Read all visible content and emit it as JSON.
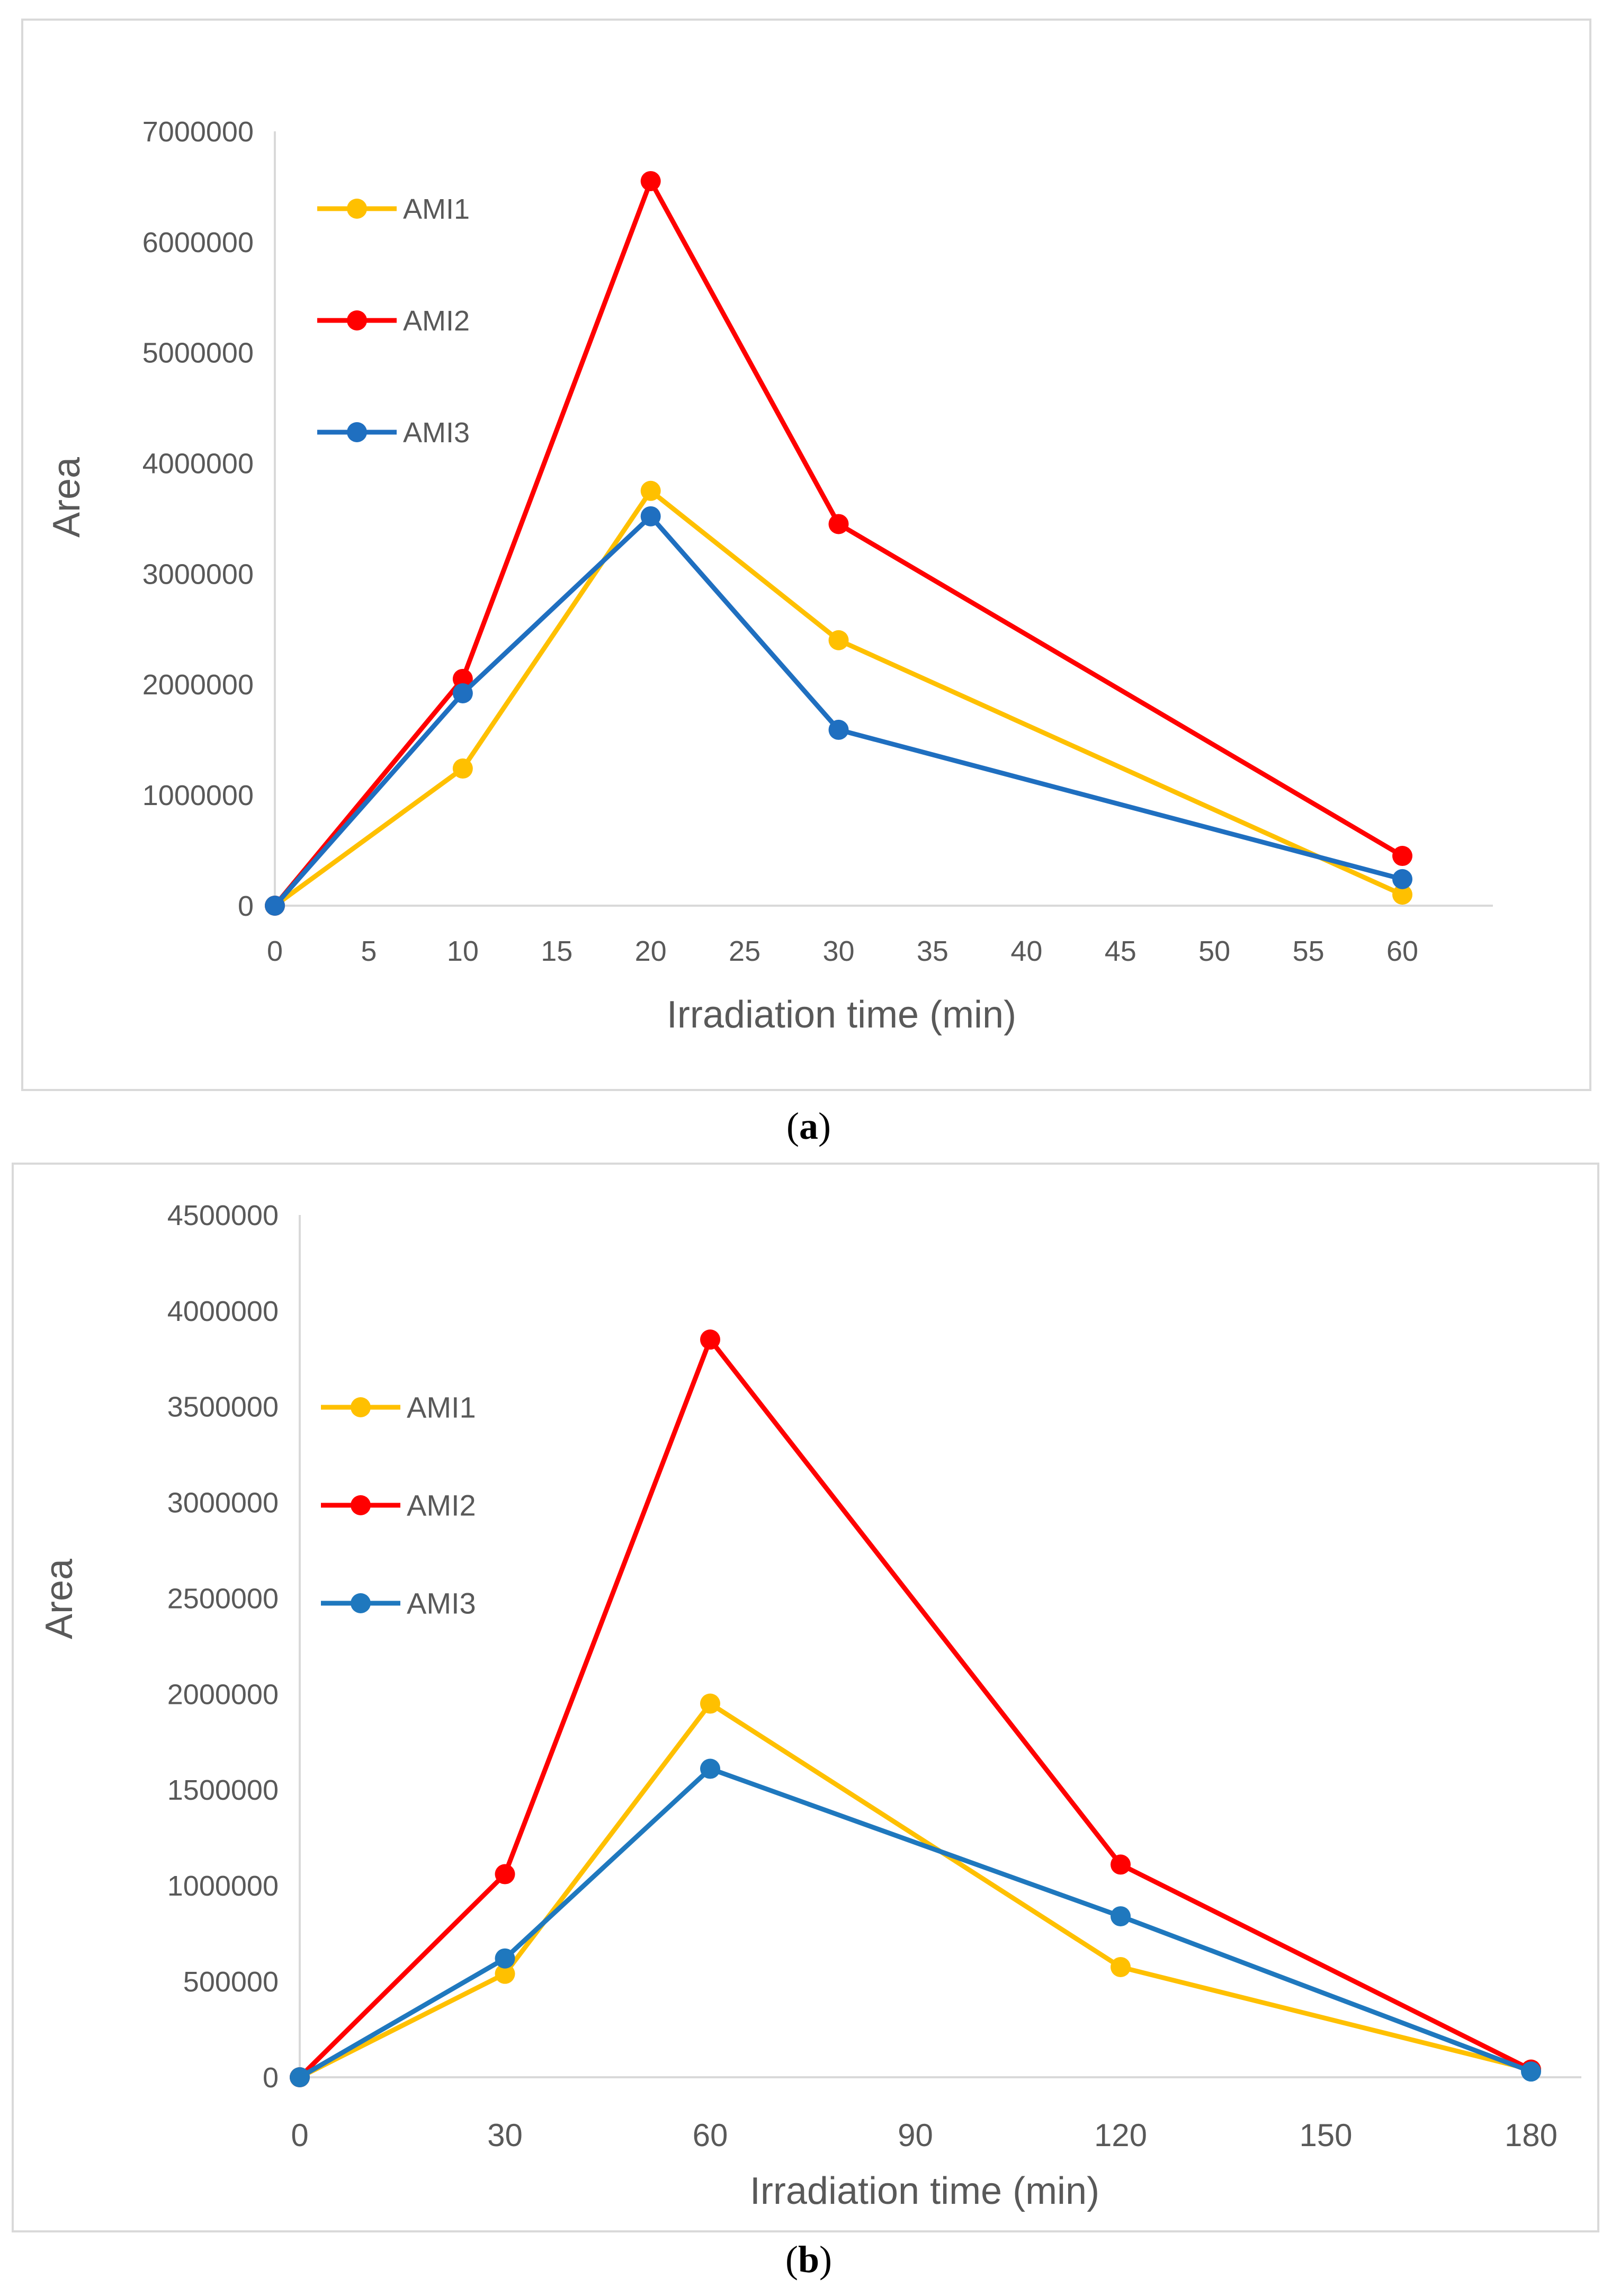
{
  "chart_data": [
    {
      "type": "line",
      "xlabel": "Irradiation time (min)",
      "ylabel": "Area",
      "x_axis_type": "numeric",
      "xlim": [
        0,
        62
      ],
      "xticks": [
        0,
        5,
        10,
        15,
        20,
        25,
        30,
        35,
        40,
        45,
        50,
        55,
        60
      ],
      "ylim": [
        0,
        7000000
      ],
      "yticks": [
        0,
        1000000,
        2000000,
        3000000,
        4000000,
        5000000,
        6000000,
        7000000
      ],
      "grid": false,
      "legend_position": "top-left",
      "series": [
        {
          "name": "AMI1",
          "color": "#FFC000",
          "x": [
            0,
            10,
            20,
            30,
            60
          ],
          "values": [
            0,
            1240000,
            3750000,
            2400000,
            100000
          ]
        },
        {
          "name": "AMI2",
          "color": "#FF0000",
          "x": [
            0,
            10,
            20,
            30,
            60
          ],
          "values": [
            0,
            2050000,
            6550000,
            3450000,
            450000
          ]
        },
        {
          "name": "AMI3",
          "color": "#1F6FC0",
          "x": [
            0,
            10,
            20,
            30,
            60
          ],
          "values": [
            0,
            1920000,
            3520000,
            1590000,
            240000
          ]
        }
      ],
      "caption_prefix": "(",
      "caption_letter": "a",
      "caption_suffix": ")"
    },
    {
      "type": "line",
      "xlabel": "Irradiation time (min)",
      "ylabel": "Area",
      "x_axis_type": "category",
      "categories": [
        "0",
        "30",
        "60",
        "90",
        "120",
        "150",
        "180"
      ],
      "ylim": [
        0,
        4500000
      ],
      "yticks": [
        0,
        500000,
        1000000,
        1500000,
        2000000,
        2500000,
        3000000,
        3500000,
        4000000,
        4500000
      ],
      "grid": false,
      "legend_position": "left",
      "series": [
        {
          "name": "AMI1",
          "color": "#FFC000",
          "x": [
            0,
            30,
            60,
            120,
            180
          ],
          "values": [
            0,
            540000,
            1950000,
            575000,
            40000
          ]
        },
        {
          "name": "AMI2",
          "color": "#FF0000",
          "x": [
            0,
            30,
            60,
            120,
            180
          ],
          "values": [
            0,
            1060000,
            3850000,
            1110000,
            40000
          ]
        },
        {
          "name": "AMI3",
          "color": "#1F78BE",
          "x": [
            0,
            30,
            60,
            120,
            180
          ],
          "values": [
            0,
            620000,
            1610000,
            840000,
            30000
          ]
        }
      ],
      "caption_prefix": "(",
      "caption_letter": "b",
      "caption_suffix": ")"
    }
  ]
}
